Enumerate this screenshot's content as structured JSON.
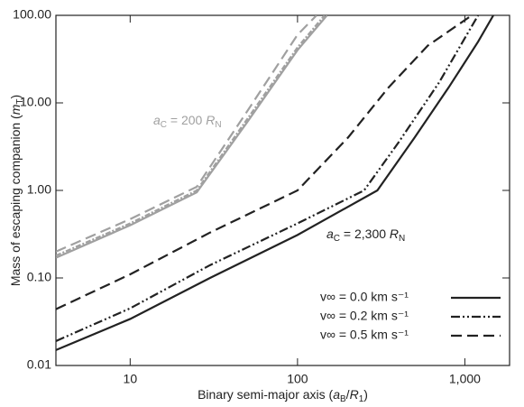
{
  "chart_data": {
    "type": "line",
    "xlabel": [
      {
        "text": "Binary semi-major axis ("
      },
      {
        "text": "a",
        "style": "italic"
      },
      {
        "text": "B",
        "style": "sub"
      },
      {
        "text": "/"
      },
      {
        "text": "R",
        "style": "italic"
      },
      {
        "text": "1",
        "style": "sub"
      },
      {
        "text": ")"
      }
    ],
    "ylabel": [
      {
        "text": "Mass of escaping companion ("
      },
      {
        "text": "m",
        "style": "italic"
      },
      {
        "text": "T",
        "style": "sub"
      },
      {
        "text": ")"
      }
    ],
    "xscale": "log",
    "yscale": "log",
    "xlim": [
      3.6,
      1850
    ],
    "ylim": [
      0.01,
      100
    ],
    "xticks": [
      10,
      100,
      {
        "value": 1000,
        "label": "1,000"
      }
    ],
    "yticks": [
      {
        "value": 0.01,
        "label": "0.01"
      },
      {
        "value": 0.1,
        "label": "0.10"
      },
      {
        "value": 1,
        "label": "1.00"
      },
      {
        "value": 10,
        "label": "10.00"
      },
      {
        "value": 100,
        "label": "100.00"
      }
    ],
    "legend": "lower right",
    "series": [
      {
        "name": "v∞ = 0.0 km s⁻¹",
        "color": "#222222",
        "dash": "",
        "x": [
          3.6,
          10,
          30,
          100,
          300,
          500,
          800,
          1200,
          1480
        ],
        "values": [
          0.015,
          0.034,
          0.1,
          0.31,
          1.0,
          4,
          15,
          50,
          100
        ]
      },
      {
        "name": "v∞ = 0.2 km s⁻¹",
        "color": "#222222",
        "dash": "10 3 2 3 2 3",
        "x": [
          3.6,
          10,
          30,
          100,
          250,
          400,
          700,
          1000,
          1200
        ],
        "values": [
          0.019,
          0.045,
          0.14,
          0.42,
          1.0,
          3.5,
          17,
          55,
          100
        ]
      },
      {
        "name": "v∞ = 0.5 km s⁻¹",
        "color": "#222222",
        "dash": "12 6",
        "x": [
          3.6,
          10,
          30,
          100,
          200,
          350,
          600,
          1100
        ],
        "values": [
          0.044,
          0.11,
          0.33,
          1.0,
          4,
          15,
          45,
          100
        ]
      },
      {
        "color": "#a0a0a0",
        "dash": "",
        "x": [
          3.6,
          10,
          25,
          50,
          100,
          150
        ],
        "values": [
          0.17,
          0.4,
          0.95,
          6,
          40,
          100
        ]
      },
      {
        "color": "#a0a0a0",
        "dash": "6 2 2 2",
        "x": [
          3.6,
          10,
          25,
          50,
          100,
          145
        ],
        "values": [
          0.18,
          0.42,
          1.0,
          6.5,
          43,
          100
        ]
      },
      {
        "color": "#a0a0a0",
        "dash": "12 6",
        "x": [
          3.6,
          10,
          25,
          50,
          100,
          130
        ],
        "values": [
          0.2,
          0.47,
          1.1,
          8,
          60,
          100
        ]
      }
    ],
    "annotations": [
      {
        "color": "#a0a0a0",
        "parts": [
          {
            "text": "a",
            "style": "italic"
          },
          {
            "text": "C",
            "style": "sub"
          },
          {
            "text": " = 200 "
          },
          {
            "text": "R",
            "style": "italic"
          },
          {
            "text": "N",
            "style": "sub"
          }
        ]
      },
      {
        "color": "#222222",
        "parts": [
          {
            "text": "a",
            "style": "italic"
          },
          {
            "text": "C",
            "style": "sub"
          },
          {
            "text": " = 2,300 "
          },
          {
            "text": "R",
            "style": "italic"
          },
          {
            "text": "N",
            "style": "sub"
          }
        ]
      }
    ]
  }
}
